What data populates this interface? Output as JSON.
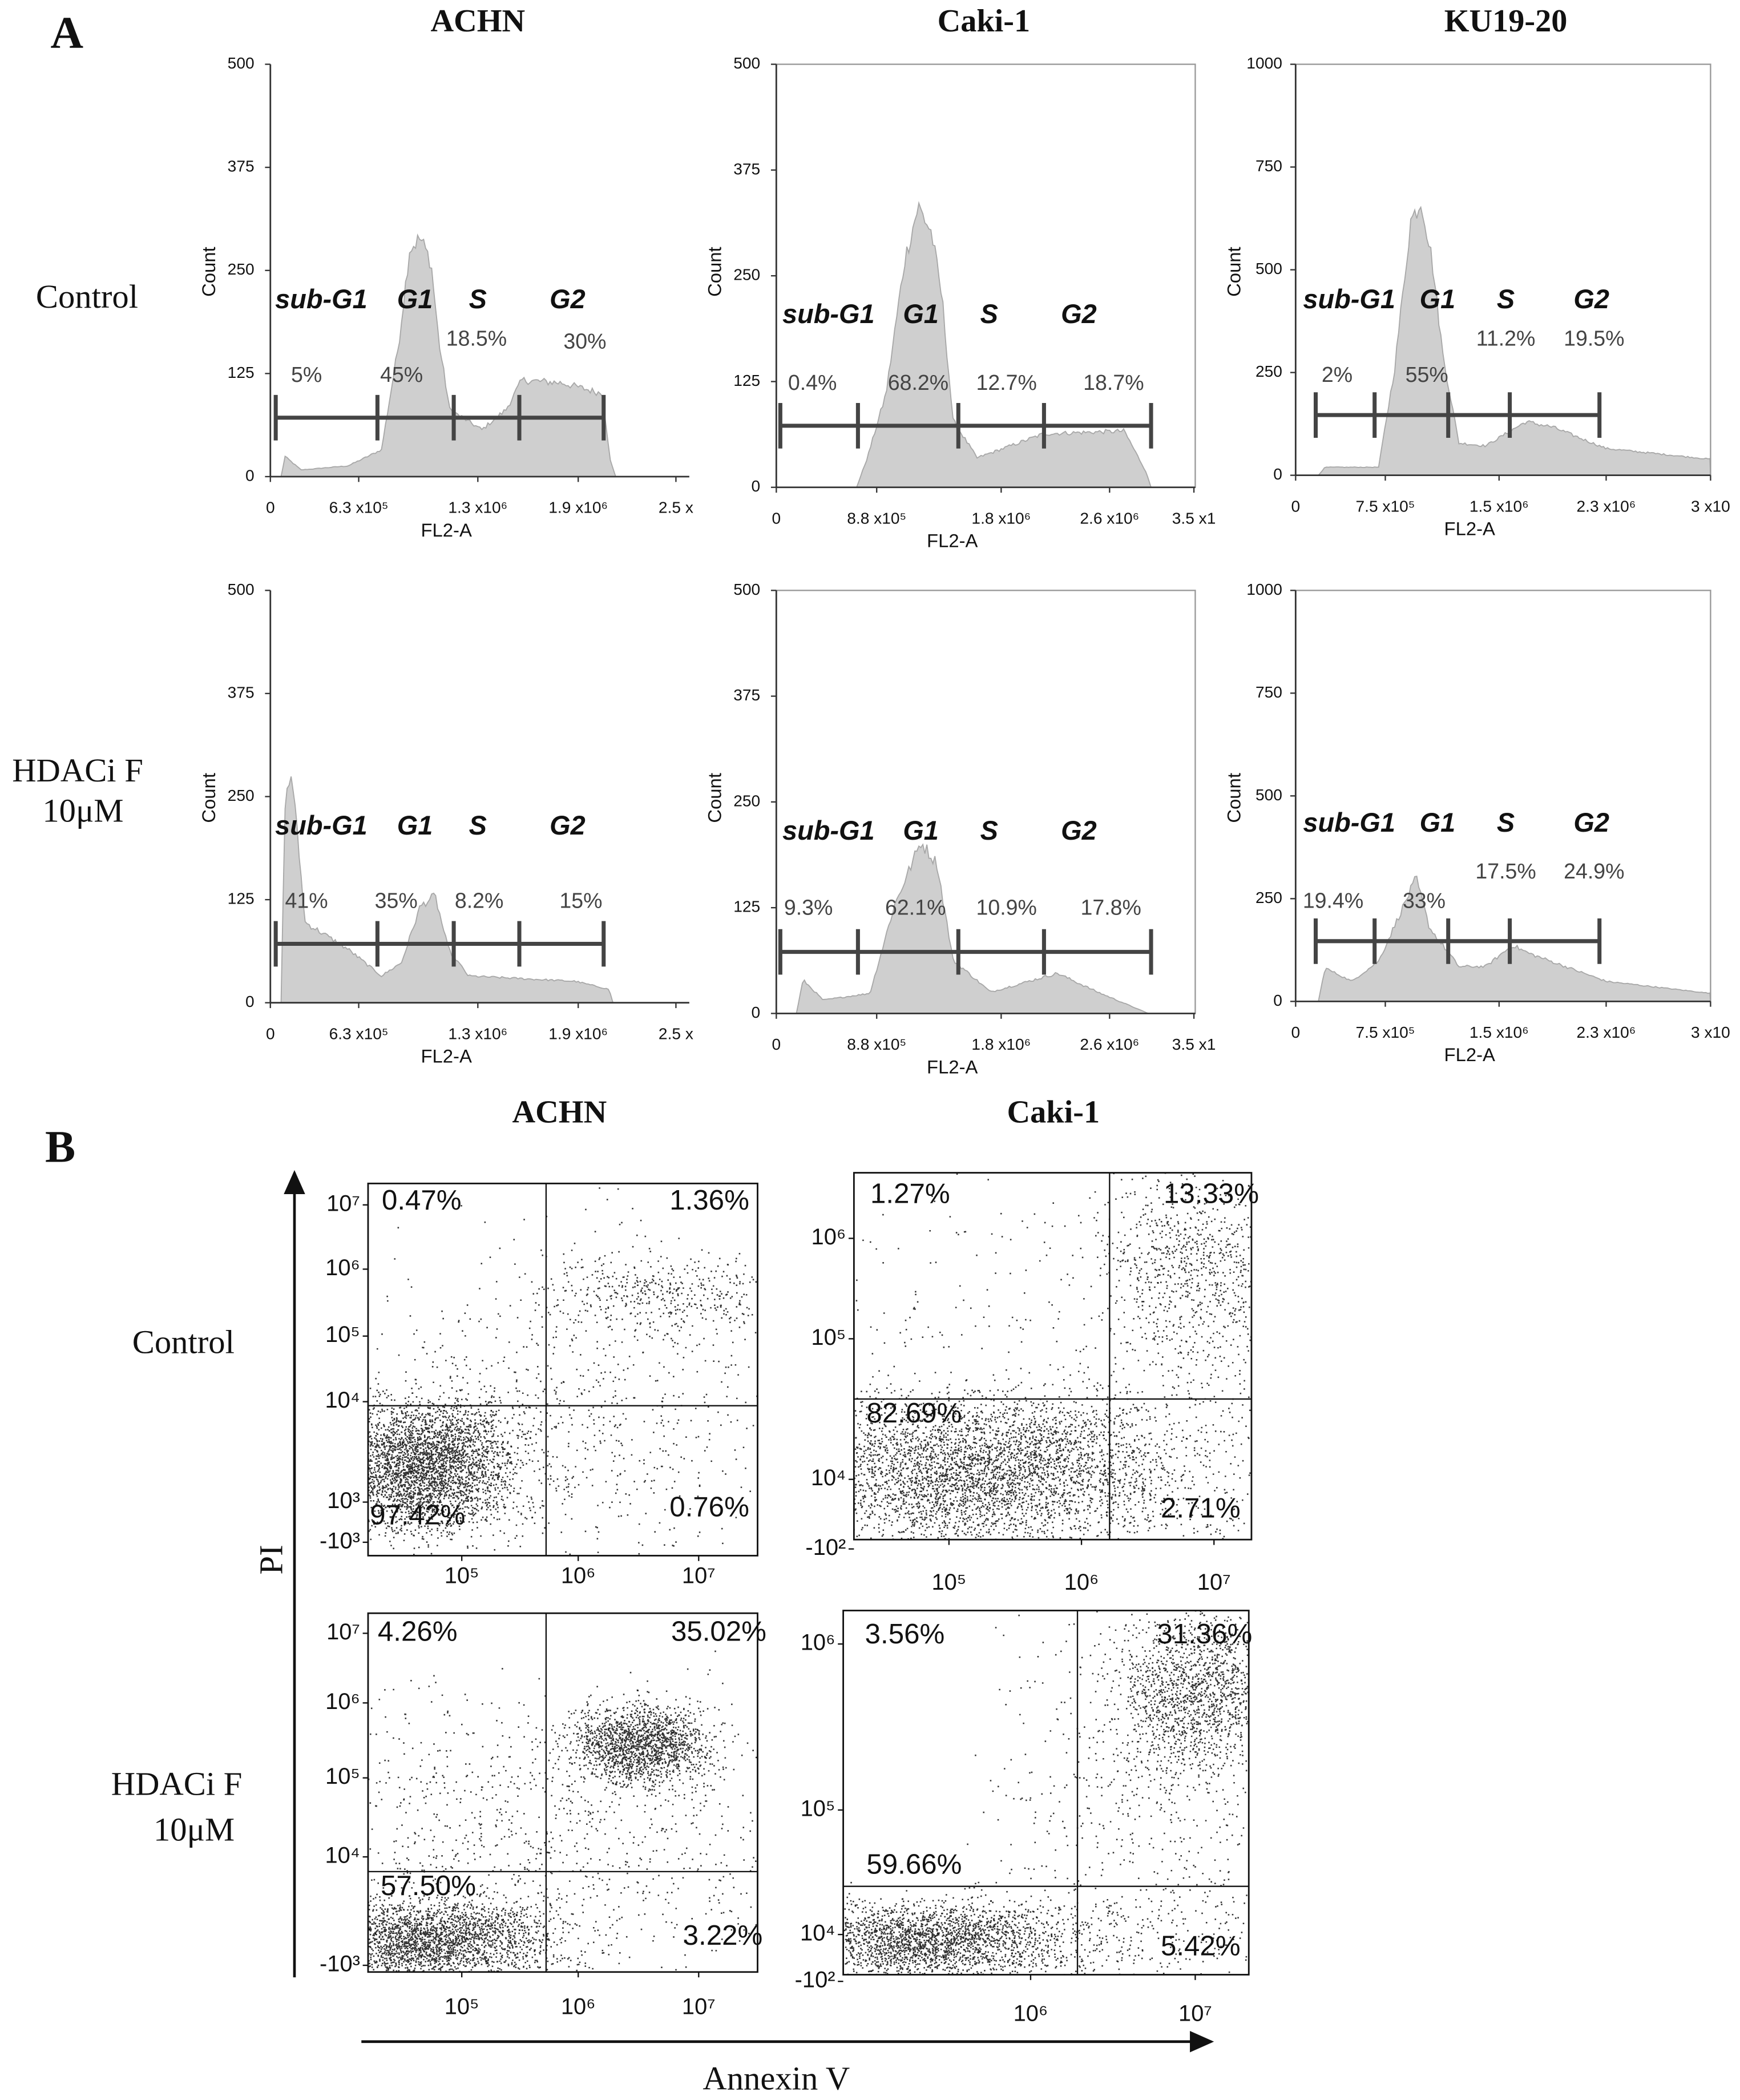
{
  "panel_a": {
    "label": "A",
    "columns": [
      "ACHN",
      "Caki-1",
      "KU19-20"
    ],
    "rows": [
      [
        "Control"
      ],
      [
        "HDACi F",
        "10μM"
      ]
    ],
    "plots": [
      {
        "y_label": "Count",
        "x_label": "FL2-A",
        "yticks": [
          "500",
          "375",
          "250",
          "125",
          "0"
        ],
        "xticks": [
          "0",
          "6.3 x10⁵",
          "1.3 x10⁶",
          "1.9 x10⁶",
          "2.5 x"
        ],
        "phases": [
          "sub-G1",
          "G1",
          "S",
          "G2"
        ],
        "percents": [
          "5%",
          "45%",
          "18.5%",
          "30%"
        ]
      },
      {
        "y_label": "Count",
        "x_label": "FL2-A",
        "yticks": [
          "500",
          "375",
          "250",
          "125",
          "0"
        ],
        "xticks": [
          "0",
          "8.8 x10⁵",
          "1.8 x10⁶",
          "2.6 x10⁶",
          "3.5 x1"
        ],
        "phases": [
          "sub-G1",
          "G1",
          "S",
          "G2"
        ],
        "percents": [
          "0.4%",
          "68.2%",
          "12.7%",
          "18.7%"
        ]
      },
      {
        "y_label": "Count",
        "x_label": "FL2-A",
        "yticks": [
          "1000",
          "750",
          "500",
          "250",
          "0"
        ],
        "xticks": [
          "0",
          "7.5 x10⁵",
          "1.5 x10⁶",
          "2.3 x10⁶",
          "3 x10"
        ],
        "phases": [
          "sub-G1",
          "G1",
          "S",
          "G2"
        ],
        "percents": [
          "2%",
          "55%",
          "11.2%",
          "19.5%"
        ]
      },
      {
        "y_label": "Count",
        "x_label": "FL2-A",
        "yticks": [
          "500",
          "375",
          "250",
          "125",
          "0"
        ],
        "xticks": [
          "0",
          "6.3 x10⁵",
          "1.3 x10⁶",
          "1.9 x10⁶",
          "2.5 x"
        ],
        "phases": [
          "sub-G1",
          "G1",
          "S",
          "G2"
        ],
        "percents": [
          "41%",
          "35%",
          "8.2%",
          "15%"
        ]
      },
      {
        "y_label": "Count",
        "x_label": "FL2-A",
        "yticks": [
          "500",
          "375",
          "250",
          "125",
          "0"
        ],
        "xticks": [
          "0",
          "8.8 x10⁵",
          "1.8 x10⁶",
          "2.6 x10⁶",
          "3.5 x1"
        ],
        "phases": [
          "sub-G1",
          "G1",
          "S",
          "G2"
        ],
        "percents": [
          "9.3%",
          "62.1%",
          "10.9%",
          "17.8%"
        ]
      },
      {
        "y_label": "Count",
        "x_label": "FL2-A",
        "yticks": [
          "1000",
          "750",
          "500",
          "250",
          "0"
        ],
        "xticks": [
          "0",
          "7.5 x10⁵",
          "1.5 x10⁶",
          "2.3 x10⁶",
          "3 x10"
        ],
        "phases": [
          "sub-G1",
          "G1",
          "S",
          "G2"
        ],
        "percents": [
          "19.4%",
          "33%",
          "17.5%",
          "24.9%"
        ]
      }
    ]
  },
  "panel_b": {
    "label": "B",
    "columns": [
      "ACHN",
      "Caki-1"
    ],
    "rows": [
      [
        "Control"
      ],
      [
        "HDACi F",
        "10μM"
      ]
    ],
    "y_label": "PI",
    "x_label": "Annexin V",
    "plots": [
      {
        "yticks": [
          "10⁷",
          "10⁶",
          "10⁵",
          "10⁴",
          "10³",
          "-10³"
        ],
        "xticks": [
          "10⁵",
          "10⁶",
          "10⁷"
        ],
        "quadrants": [
          "0.47%",
          "1.36%",
          "97.42%",
          "0.76%"
        ]
      },
      {
        "yticks": [
          "10⁶",
          "10⁵",
          "10⁴",
          "-10²"
        ],
        "xticks": [
          "10⁵",
          "10⁶",
          "10⁷"
        ],
        "quadrants": [
          "1.27%",
          "13.33%",
          "82.69%",
          "2.71%"
        ]
      },
      {
        "yticks": [
          "10⁷",
          "10⁶",
          "10⁵",
          "10⁴",
          "-10³"
        ],
        "xticks": [
          "10⁵",
          "10⁶",
          "10⁷"
        ],
        "quadrants": [
          "4.26%",
          "35.02%",
          "57.50%",
          "3.22%"
        ]
      },
      {
        "yticks": [
          "10⁶",
          "10⁵",
          "10⁴",
          "-10²"
        ],
        "xticks": [
          "10⁶",
          "10⁷"
        ],
        "quadrants": [
          "3.56%",
          "31.36%",
          "59.66%",
          "5.42%"
        ]
      }
    ]
  }
}
